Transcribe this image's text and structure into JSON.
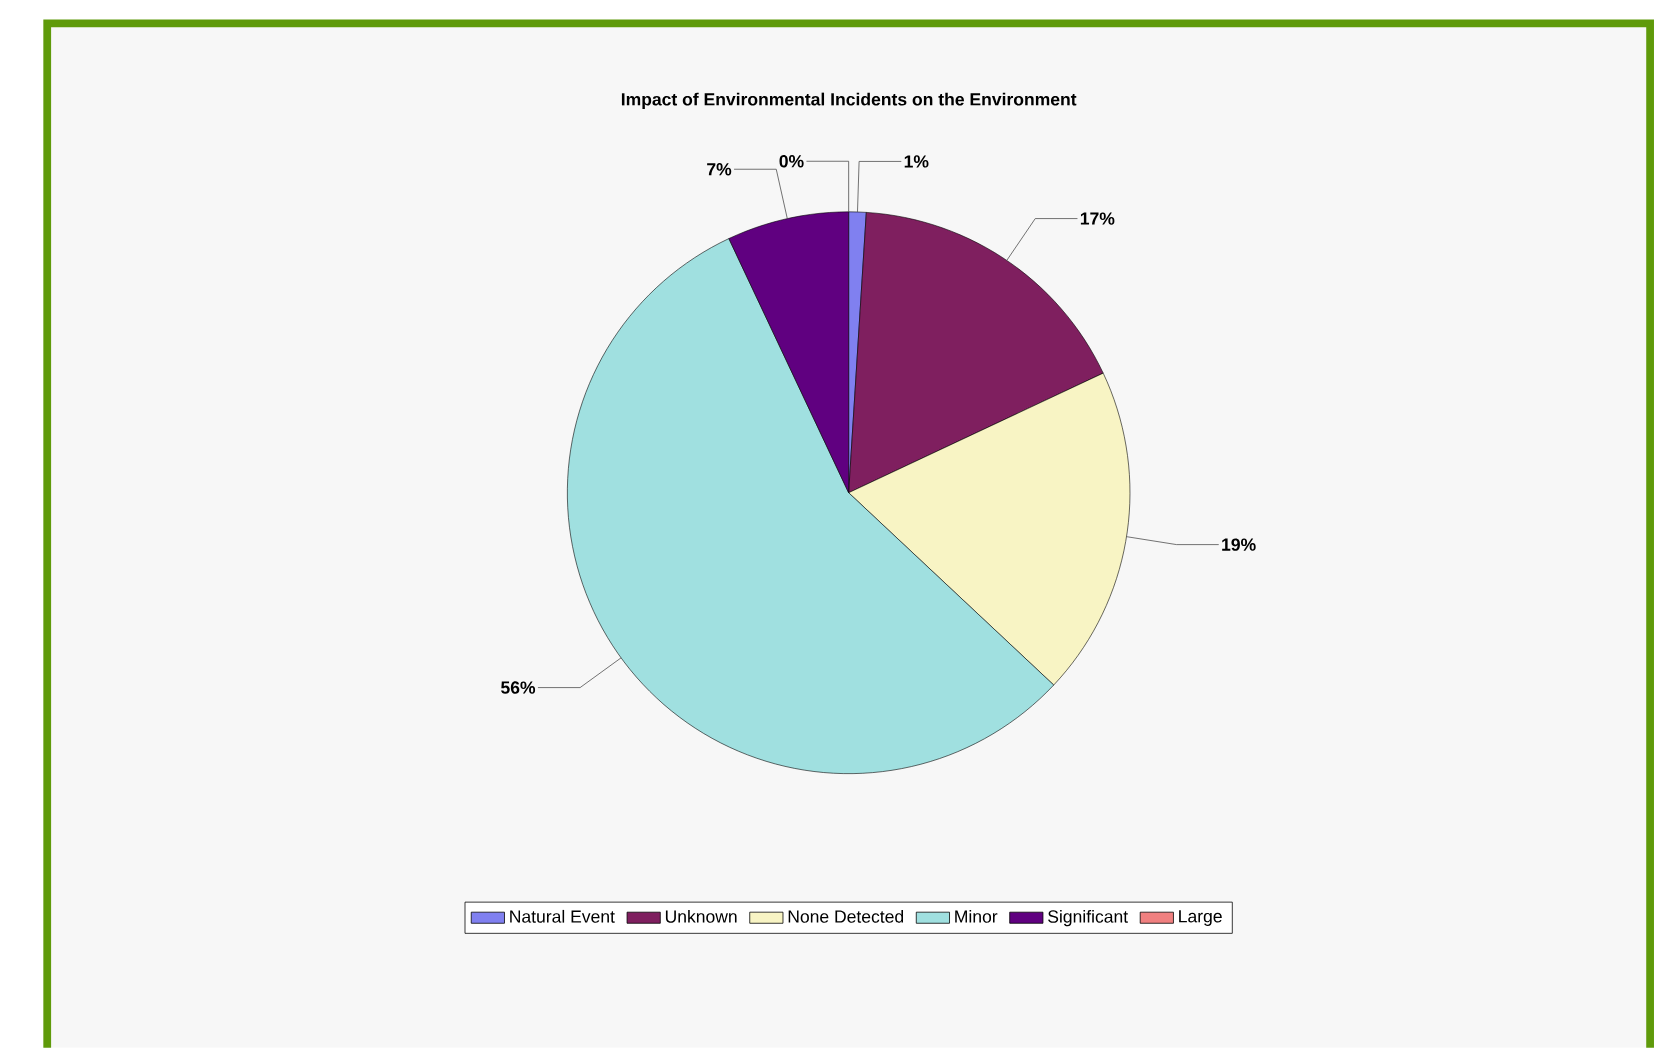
{
  "chart_data": {
    "type": "pie",
    "title": "Impact of Environmental Incidents on the Environment",
    "categories": [
      "Natural Event",
      "Unknown",
      "None Detected",
      "Minor",
      "Significant",
      "Large"
    ],
    "values": [
      1,
      17,
      19,
      56,
      7,
      0
    ],
    "value_labels": [
      "1%",
      "17%",
      "19%",
      "56%",
      "7%",
      "0%"
    ],
    "colors": [
      "#8080f0",
      "#7f1f5f",
      "#f8f4c4",
      "#a0e0e0",
      "#600080",
      "#f08080"
    ],
    "legend": "bottom"
  }
}
